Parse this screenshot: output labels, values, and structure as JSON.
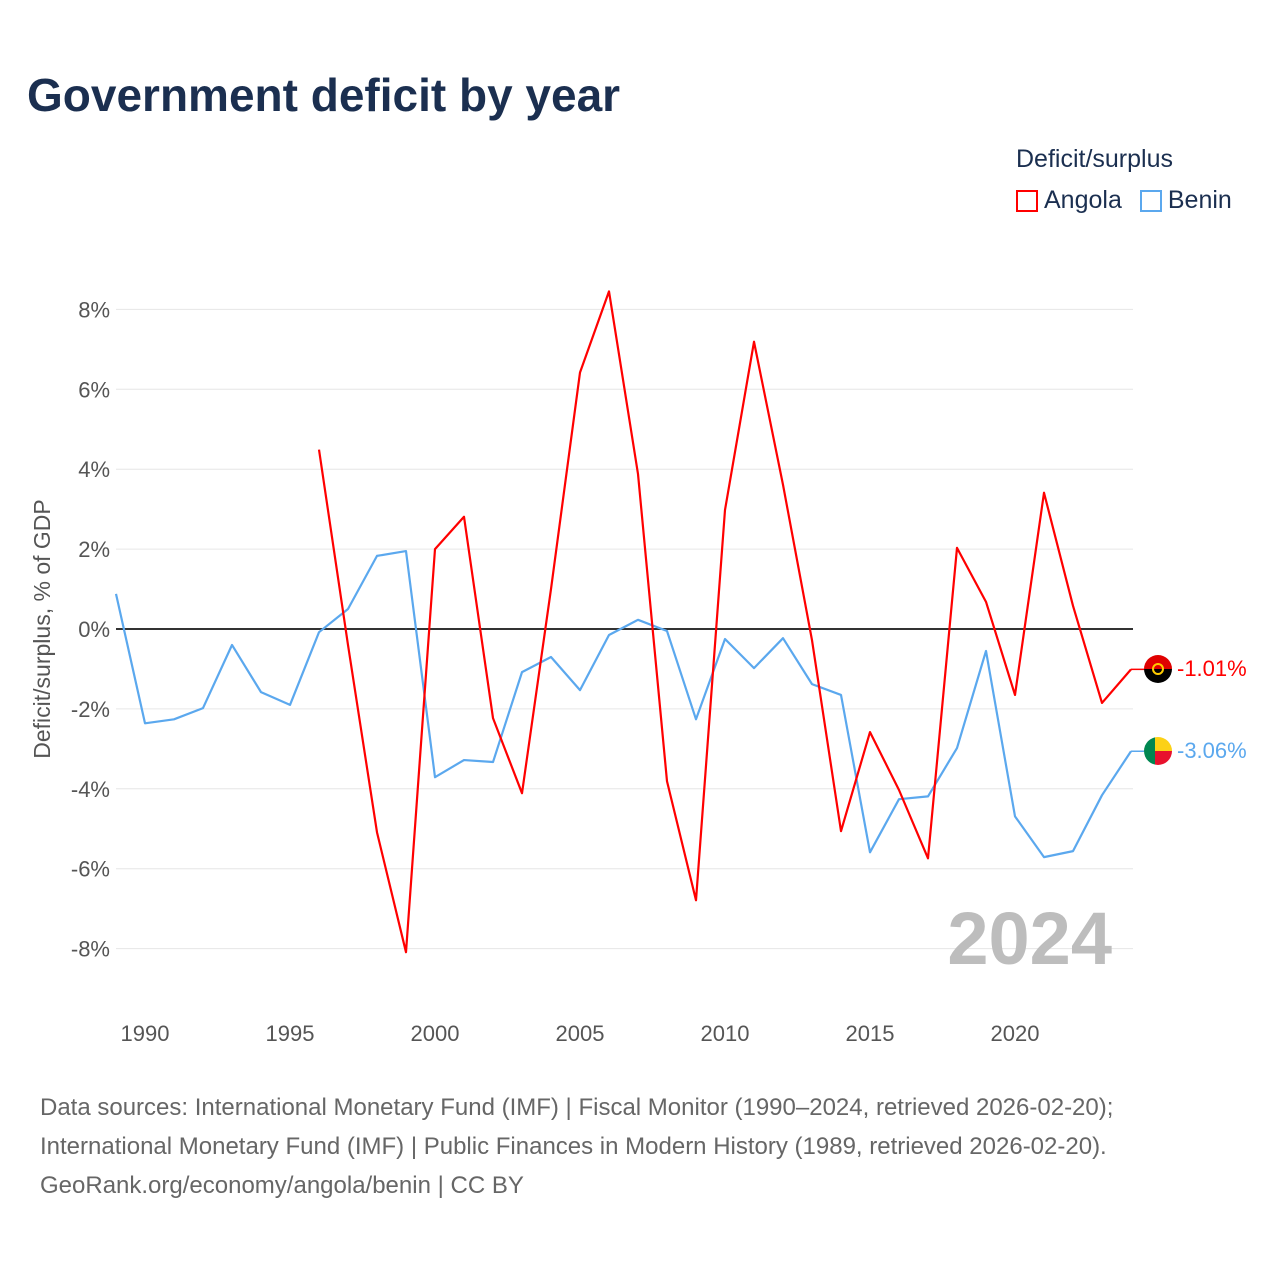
{
  "chart_data": {
    "type": "line",
    "title": "Government deficit by year",
    "ylabel": "Deficit/surplus, % of GDP",
    "xlabel": "",
    "xlim": [
      1989,
      2024
    ],
    "ylim": [
      -8.5,
      8.5
    ],
    "x_ticks": [
      1990,
      1995,
      2000,
      2005,
      2010,
      2015,
      2020
    ],
    "y_ticks": [
      8,
      6,
      4,
      2,
      0,
      -2,
      -4,
      -6,
      -8
    ],
    "y_tick_labels": [
      "8%",
      "6%",
      "4%",
      "2%",
      "0%",
      "-2%",
      "-4%",
      "-6%",
      "-8%"
    ],
    "grid": true,
    "legend_title": "Deficit/surplus",
    "legend_position": "top-right",
    "year_watermark": "2024",
    "series": [
      {
        "name": "Angola",
        "color": "#ff0000",
        "end_label": "-1.01%",
        "x": [
          1996,
          1997,
          1998,
          1999,
          2000,
          2001,
          2002,
          2003,
          2004,
          2005,
          2006,
          2007,
          2008,
          2009,
          2010,
          2011,
          2012,
          2013,
          2014,
          2015,
          2016,
          2017,
          2018,
          2019,
          2020,
          2021,
          2022,
          2023,
          2024
        ],
        "values": [
          4.49,
          -0.4,
          -5.09,
          -8.09,
          2.0,
          2.81,
          -2.23,
          -4.11,
          1.0,
          6.42,
          8.45,
          3.88,
          -3.81,
          -6.79,
          2.98,
          7.19,
          3.61,
          -0.28,
          -5.06,
          -2.58,
          -4.03,
          -5.74,
          2.03,
          0.68,
          -1.65,
          3.41,
          0.58,
          -1.85,
          -1.01
        ]
      },
      {
        "name": "Benin",
        "color": "#5ba8ee",
        "end_label": "-3.06%",
        "x": [
          1989,
          1990,
          1991,
          1992,
          1993,
          1994,
          1995,
          1996,
          1997,
          1998,
          1999,
          2000,
          2001,
          2002,
          2003,
          2004,
          2005,
          2006,
          2007,
          2008,
          2009,
          2010,
          2011,
          2012,
          2013,
          2014,
          2015,
          2016,
          2017,
          2018,
          2019,
          2020,
          2021,
          2022,
          2023,
          2024
        ],
        "values": [
          0.88,
          -2.36,
          -2.26,
          -1.98,
          -0.4,
          -1.58,
          -1.9,
          -0.08,
          0.5,
          1.83,
          1.95,
          -3.71,
          -3.28,
          -3.33,
          -1.08,
          -0.7,
          -1.53,
          -0.15,
          0.23,
          -0.05,
          -2.26,
          -0.25,
          -0.98,
          -0.23,
          -1.38,
          -1.65,
          -5.59,
          -4.26,
          -4.19,
          -2.98,
          -0.55,
          -4.69,
          -5.71,
          -5.56,
          -4.16,
          -3.06
        ]
      }
    ]
  },
  "footer": {
    "line1": "Data sources: International Monetary Fund (IMF) | Fiscal Monitor (1990–2024, retrieved 2026-02-20);",
    "line2": "International Monetary Fund (IMF) | Public Finances in Modern History (1989, retrieved 2026-02-20).",
    "line3": "GeoRank.org/economy/angola/benin | CC BY"
  }
}
